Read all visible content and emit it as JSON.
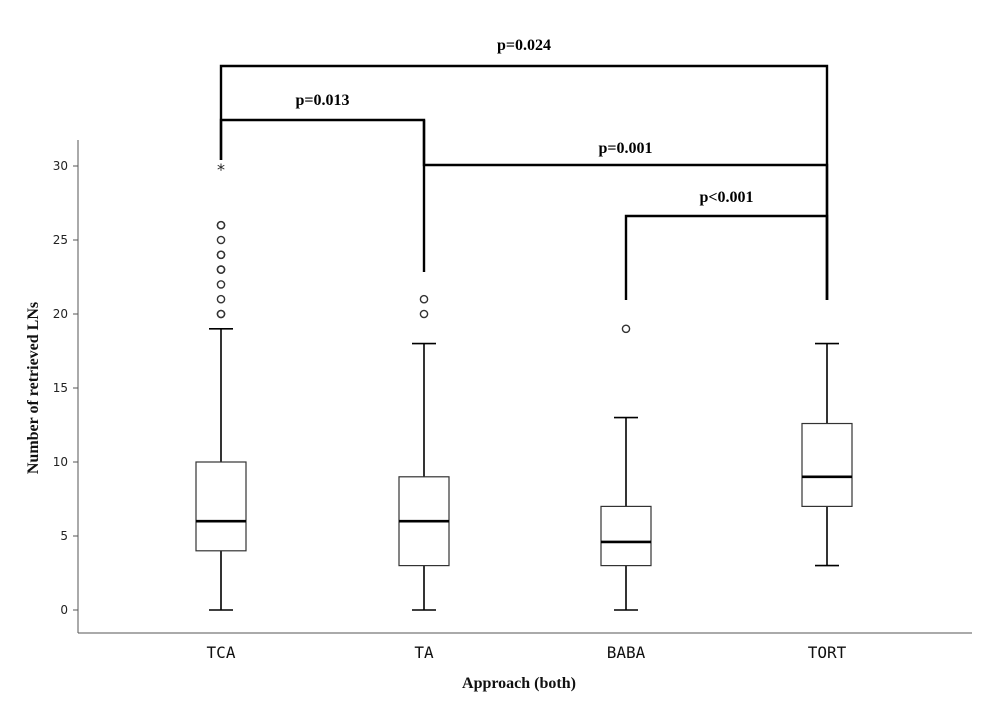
{
  "chart_data": {
    "type": "boxplot",
    "xlabel": "Approach (both)",
    "ylabel": "Number of retrieved LNs",
    "ylim": [
      -1.3,
      32
    ],
    "yticks": [
      0,
      5,
      10,
      15,
      20,
      25,
      30
    ],
    "grid": false,
    "categories": [
      "TCA",
      "TA",
      "BABA",
      "TORT"
    ],
    "boxes": [
      {
        "category": "TCA",
        "min": 0,
        "q1": 4,
        "median": 6,
        "q3": 10,
        "max": 19,
        "outliers": [
          20,
          20,
          21,
          22,
          23,
          23,
          24,
          24,
          25,
          26,
          26
        ],
        "extremes": [
          30
        ]
      },
      {
        "category": "TA",
        "min": 0,
        "q1": 3,
        "median": 6,
        "q3": 9,
        "max": 18,
        "outliers": [
          20,
          21
        ],
        "extremes": []
      },
      {
        "category": "BABA",
        "min": 0,
        "q1": 3,
        "median": 4.6,
        "q3": 7,
        "max": 13,
        "outliers": [
          19
        ],
        "extremes": []
      },
      {
        "category": "TORT",
        "min": 3,
        "q1": 7,
        "median": 9,
        "q3": 12.6,
        "max": 18,
        "outliers": [],
        "extremes": []
      }
    ],
    "significance": [
      {
        "from": "TCA",
        "to": "TORT",
        "label": "p=0.024"
      },
      {
        "from": "TCA",
        "to": "TA",
        "label": "p=0.013"
      },
      {
        "from": "TA",
        "to": "TORT",
        "label": "p=0.001"
      },
      {
        "from": "BABA",
        "to": "TORT",
        "label": "p<0.001"
      }
    ]
  }
}
